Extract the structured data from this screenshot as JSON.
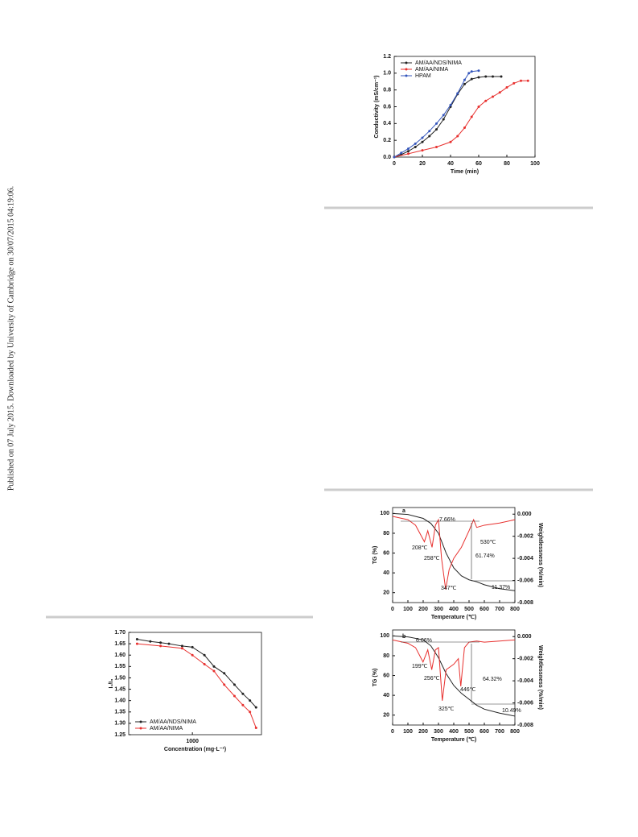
{
  "side_note": "Published on 07 July 2015. Downloaded by University of Cambridge on 30/07/2015 04:19:06.",
  "chart_data": [
    {
      "type": "line",
      "xlabel": "Time (min)",
      "ylabel": "Conductivity (mS/cm⁻¹)",
      "xlim": [
        0,
        100
      ],
      "xticks": [
        0,
        20,
        40,
        60,
        80,
        100
      ],
      "ylim": [
        0,
        1.2
      ],
      "yticks": [
        {
          "value": 0,
          "label": "0.0"
        },
        0.2,
        0.4,
        0.6,
        0.8,
        {
          "value": 1,
          "label": "1.0"
        },
        1.2
      ],
      "legend": "upper left",
      "markers": true,
      "series": [
        {
          "name": "AM/AA/NDS/NIMA",
          "color": "#222222",
          "x": [
            0,
            5,
            10,
            15,
            20,
            25,
            30,
            35,
            40,
            45,
            50,
            55,
            60,
            65,
            70,
            76
          ],
          "values": [
            0,
            0.03,
            0.07,
            0.12,
            0.18,
            0.25,
            0.33,
            0.45,
            0.6,
            0.75,
            0.87,
            0.93,
            0.95,
            0.96,
            0.96,
            0.96
          ]
        },
        {
          "name": "AM/AA/NIMA",
          "color": "#e8312f",
          "x": [
            0,
            10,
            20,
            30,
            40,
            45,
            50,
            55,
            60,
            65,
            70,
            75,
            80,
            85,
            90,
            95
          ],
          "values": [
            0,
            0.04,
            0.08,
            0.12,
            0.18,
            0.25,
            0.35,
            0.48,
            0.6,
            0.67,
            0.72,
            0.77,
            0.83,
            0.88,
            0.91,
            0.91
          ]
        },
        {
          "name": "HPAM",
          "color": "#3355bb",
          "x": [
            0,
            5,
            10,
            15,
            20,
            25,
            30,
            35,
            40,
            45,
            50,
            53,
            55,
            60
          ],
          "values": [
            0,
            0.05,
            0.1,
            0.16,
            0.23,
            0.31,
            0.4,
            0.5,
            0.62,
            0.76,
            0.92,
            1.0,
            1.02,
            1.03
          ]
        }
      ]
    },
    {
      "type": "line",
      "xlabel": "Concentration (mg·L⁻¹)",
      "ylabel": "I₁/I₃",
      "xscale": "log",
      "xlim": [
        250,
        4500
      ],
      "xticks": [
        1000
      ],
      "ylim": [
        1.25,
        1.7
      ],
      "yticks": [
        1.25,
        {
          "value": 1.3,
          "label": "1.30"
        },
        1.35,
        {
          "value": 1.4,
          "label": "1.40"
        },
        1.45,
        {
          "value": 1.5,
          "label": "1.50"
        },
        1.55,
        {
          "value": 1.6,
          "label": "1.60"
        },
        1.65,
        {
          "value": 1.7,
          "label": "1.70"
        }
      ],
      "legend": "lower left",
      "markers": true,
      "series": [
        {
          "name": "AM/AA/NDS/NIMA",
          "color": "#222222",
          "x": [
            300,
            400,
            500,
            600,
            800,
            1000,
            1300,
            1600,
            2000,
            2500,
            3000,
            3500,
            4000
          ],
          "values": [
            1.67,
            1.66,
            1.655,
            1.65,
            1.64,
            1.635,
            1.6,
            1.55,
            1.52,
            1.47,
            1.43,
            1.4,
            1.37
          ]
        },
        {
          "name": "AM/AA/NIMA",
          "color": "#e8312f",
          "x": [
            300,
            500,
            800,
            1000,
            1300,
            1600,
            2000,
            2500,
            3000,
            3500,
            4000
          ],
          "values": [
            1.65,
            1.64,
            1.63,
            1.6,
            1.56,
            1.53,
            1.47,
            1.42,
            1.38,
            1.35,
            1.28
          ]
        }
      ]
    },
    {
      "type": "line",
      "xlabel": "Temperature (℃)",
      "ylabel": "TG (%)",
      "y2label": "Weightlessness (%/min)",
      "xlim": [
        0,
        800
      ],
      "xticks": [
        0,
        100,
        200,
        300,
        400,
        500,
        600,
        700,
        800
      ],
      "ylim": [
        10,
        106
      ],
      "yticks": [
        20,
        40,
        60,
        80,
        100
      ],
      "y2lim": [
        -0.008,
        0.0006
      ],
      "y2ticks": [
        {
          "value": 0,
          "label": "0.000"
        },
        {
          "value": -0.002,
          "label": "-0.002"
        },
        {
          "value": -0.004,
          "label": "-0.004"
        },
        {
          "value": -0.006,
          "label": "-0.006"
        },
        {
          "value": -0.008,
          "label": "-0.008"
        }
      ],
      "annotations": [
        "a",
        "7.66%",
        "208℃",
        "258℃",
        "347℃",
        "530℃",
        "61.74%",
        "11.37%"
      ],
      "series": [
        {
          "color": "#222222",
          "x": [
            0,
            100,
            200,
            250,
            300,
            350,
            400,
            450,
            500,
            550,
            600,
            700,
            800
          ],
          "values": [
            100,
            99,
            95,
            90,
            80,
            60,
            45,
            37,
            33,
            31,
            28,
            24,
            22
          ]
        },
        {
          "color": "#e8312f",
          "axis": "y2",
          "x": [
            0,
            100,
            150,
            208,
            230,
            258,
            280,
            300,
            320,
            347,
            370,
            400,
            450,
            500,
            530,
            550,
            600,
            700,
            800
          ],
          "values": [
            -0.0002,
            -0.0005,
            -0.001,
            -0.0025,
            -0.0015,
            -0.003,
            -0.001,
            -0.0005,
            -0.004,
            -0.0068,
            -0.005,
            -0.004,
            -0.003,
            -0.0015,
            -0.0005,
            -0.0012,
            -0.001,
            -0.0008,
            -0.0005
          ]
        }
      ]
    },
    {
      "type": "line",
      "xlabel": "Temperature (℃)",
      "ylabel": "TG (%)",
      "y2label": "Weightlessness (%/min)",
      "xlim": [
        0,
        800
      ],
      "xticks": [
        0,
        100,
        200,
        300,
        400,
        500,
        600,
        700,
        800
      ],
      "ylim": [
        10,
        106
      ],
      "yticks": [
        20,
        40,
        60,
        80,
        100
      ],
      "y2lim": [
        -0.008,
        0.0006
      ],
      "y2ticks": [
        {
          "value": 0,
          "label": "0.000"
        },
        {
          "value": -0.002,
          "label": "-0.002"
        },
        {
          "value": -0.004,
          "label": "-0.004"
        },
        {
          "value": -0.006,
          "label": "-0.006"
        },
        {
          "value": -0.008,
          "label": "-0.008"
        }
      ],
      "annotations": [
        "b",
        "6.06%",
        "199℃",
        "256℃",
        "325℃",
        "446℃",
        "64.32%",
        "10.49%"
      ],
      "series": [
        {
          "color": "#222222",
          "x": [
            0,
            100,
            200,
            250,
            300,
            350,
            400,
            450,
            500,
            550,
            600,
            700,
            800
          ],
          "values": [
            100,
            99,
            96,
            90,
            78,
            62,
            50,
            42,
            36,
            30,
            26,
            22,
            19
          ]
        },
        {
          "color": "#e8312f",
          "axis": "y2",
          "x": [
            0,
            100,
            150,
            199,
            230,
            256,
            280,
            300,
            325,
            350,
            400,
            430,
            446,
            470,
            500,
            550,
            600,
            700,
            800
          ],
          "values": [
            -0.0003,
            -0.0006,
            -0.001,
            -0.0023,
            -0.0012,
            -0.003,
            -0.0012,
            -0.001,
            -0.0058,
            -0.003,
            -0.0025,
            -0.002,
            -0.0045,
            -0.001,
            -0.0005,
            -0.0004,
            -0.0005,
            -0.0004,
            -0.0003
          ]
        }
      ]
    }
  ]
}
